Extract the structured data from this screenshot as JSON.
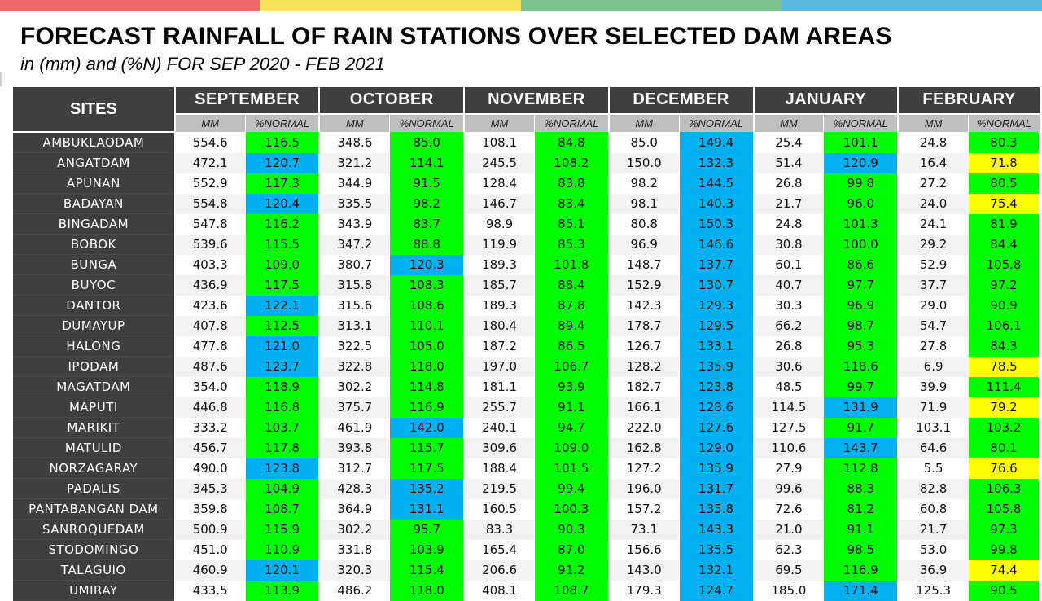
{
  "colors": {
    "bar": [
      "#f06a6a",
      "#f6e15a",
      "#7dc48f",
      "#58b6e0"
    ],
    "header_bg": "#3f3f3f",
    "green": "#00ff00",
    "blue": "#00b0f0",
    "yellow": "#ffff00"
  },
  "title": "FORECAST RAINFALL OF RAIN STATIONS OVER SELECTED DAM AREAS",
  "subtitle": "in (mm) and (%N) FOR SEP 2020 - FEB 2021",
  "sites_label": "SITES",
  "mm_label": "MM",
  "pct_label": "%NORMAL",
  "months": [
    "SEPTEMBER",
    "OCTOBER",
    "NOVEMBER",
    "DECEMBER",
    "JANUARY",
    "FEBRUARY"
  ],
  "rows": [
    {
      "site": "AMBUKLAODAM",
      "v": [
        [
          "554.6",
          "116.5",
          "g"
        ],
        [
          "348.6",
          "85.0",
          "g"
        ],
        [
          "108.1",
          "84.8",
          "g"
        ],
        [
          "85.0",
          "149.4",
          "b"
        ],
        [
          "25.4",
          "101.1",
          "g"
        ],
        [
          "24.8",
          "80.3",
          "g"
        ]
      ]
    },
    {
      "site": "ANGATDAM",
      "v": [
        [
          "472.1",
          "120.7",
          "b"
        ],
        [
          "321.2",
          "114.1",
          "g"
        ],
        [
          "245.5",
          "108.2",
          "g"
        ],
        [
          "150.0",
          "132.3",
          "b"
        ],
        [
          "51.4",
          "120.9",
          "b"
        ],
        [
          "16.4",
          "71.8",
          "y"
        ]
      ]
    },
    {
      "site": "APUNAN",
      "v": [
        [
          "552.9",
          "117.3",
          "g"
        ],
        [
          "344.9",
          "91.5",
          "g"
        ],
        [
          "128.4",
          "83.8",
          "g"
        ],
        [
          "98.2",
          "144.5",
          "b"
        ],
        [
          "26.8",
          "99.8",
          "g"
        ],
        [
          "27.2",
          "80.5",
          "g"
        ]
      ]
    },
    {
      "site": "BADAYAN",
      "v": [
        [
          "554.8",
          "120.4",
          "b"
        ],
        [
          "335.5",
          "98.2",
          "g"
        ],
        [
          "146.7",
          "83.4",
          "g"
        ],
        [
          "98.1",
          "140.3",
          "b"
        ],
        [
          "21.7",
          "96.0",
          "g"
        ],
        [
          "24.0",
          "75.4",
          "y"
        ]
      ]
    },
    {
      "site": "BINGADAM",
      "v": [
        [
          "547.8",
          "116.2",
          "g"
        ],
        [
          "343.9",
          "83.7",
          "g"
        ],
        [
          "98.9",
          "85.1",
          "g"
        ],
        [
          "80.8",
          "150.3",
          "b"
        ],
        [
          "24.8",
          "101.3",
          "g"
        ],
        [
          "24.1",
          "81.9",
          "g"
        ]
      ]
    },
    {
      "site": "BOBOK",
      "v": [
        [
          "539.6",
          "115.5",
          "g"
        ],
        [
          "347.2",
          "88.8",
          "g"
        ],
        [
          "119.9",
          "85.3",
          "g"
        ],
        [
          "96.9",
          "146.6",
          "b"
        ],
        [
          "30.8",
          "100.0",
          "g"
        ],
        [
          "29.2",
          "84.4",
          "g"
        ]
      ]
    },
    {
      "site": "BUNGA",
      "v": [
        [
          "403.3",
          "109.0",
          "g"
        ],
        [
          "380.7",
          "120.3",
          "b"
        ],
        [
          "189.3",
          "101.8",
          "g"
        ],
        [
          "148.7",
          "137.7",
          "b"
        ],
        [
          "60.1",
          "86.6",
          "g"
        ],
        [
          "52.9",
          "105.8",
          "g"
        ]
      ]
    },
    {
      "site": "BUYOC",
      "v": [
        [
          "436.9",
          "117.5",
          "g"
        ],
        [
          "315.8",
          "108.3",
          "g"
        ],
        [
          "185.7",
          "88.4",
          "g"
        ],
        [
          "152.9",
          "130.7",
          "b"
        ],
        [
          "40.7",
          "97.7",
          "g"
        ],
        [
          "37.7",
          "97.2",
          "g"
        ]
      ]
    },
    {
      "site": "DANTOR",
      "v": [
        [
          "423.6",
          "122.1",
          "b"
        ],
        [
          "315.6",
          "108.6",
          "g"
        ],
        [
          "189.3",
          "87.8",
          "g"
        ],
        [
          "142.3",
          "129.3",
          "b"
        ],
        [
          "30.3",
          "96.9",
          "g"
        ],
        [
          "29.0",
          "90.9",
          "g"
        ]
      ]
    },
    {
      "site": "DUMAYUP",
      "v": [
        [
          "407.8",
          "112.5",
          "g"
        ],
        [
          "313.1",
          "110.1",
          "g"
        ],
        [
          "180.4",
          "89.4",
          "g"
        ],
        [
          "178.7",
          "129.5",
          "b"
        ],
        [
          "66.2",
          "98.7",
          "g"
        ],
        [
          "54.7",
          "106.1",
          "g"
        ]
      ]
    },
    {
      "site": "HALONG",
      "v": [
        [
          "477.8",
          "121.0",
          "b"
        ],
        [
          "322.5",
          "105.0",
          "g"
        ],
        [
          "187.2",
          "86.5",
          "g"
        ],
        [
          "126.7",
          "133.1",
          "b"
        ],
        [
          "26.8",
          "95.3",
          "g"
        ],
        [
          "27.8",
          "84.3",
          "g"
        ]
      ]
    },
    {
      "site": "IPODAM",
      "v": [
        [
          "487.6",
          "123.7",
          "b"
        ],
        [
          "322.8",
          "118.0",
          "g"
        ],
        [
          "197.0",
          "106.7",
          "g"
        ],
        [
          "128.2",
          "135.9",
          "b"
        ],
        [
          "30.6",
          "118.6",
          "g"
        ],
        [
          "6.9",
          "78.5",
          "y"
        ]
      ]
    },
    {
      "site": "MAGATDAM",
      "v": [
        [
          "354.0",
          "118.9",
          "g"
        ],
        [
          "302.2",
          "114.8",
          "g"
        ],
        [
          "181.1",
          "93.9",
          "g"
        ],
        [
          "182.7",
          "123.8",
          "b"
        ],
        [
          "48.5",
          "99.7",
          "g"
        ],
        [
          "39.9",
          "111.4",
          "g"
        ]
      ]
    },
    {
      "site": "MAPUTI",
      "v": [
        [
          "446.8",
          "116.8",
          "g"
        ],
        [
          "375.7",
          "116.9",
          "g"
        ],
        [
          "255.7",
          "91.1",
          "g"
        ],
        [
          "166.1",
          "128.6",
          "b"
        ],
        [
          "114.5",
          "131.9",
          "b"
        ],
        [
          "71.9",
          "79.2",
          "y"
        ]
      ]
    },
    {
      "site": "MARIKIT",
      "v": [
        [
          "333.2",
          "103.7",
          "g"
        ],
        [
          "461.9",
          "142.0",
          "b"
        ],
        [
          "240.1",
          "94.7",
          "g"
        ],
        [
          "222.0",
          "127.6",
          "b"
        ],
        [
          "127.5",
          "91.7",
          "g"
        ],
        [
          "103.1",
          "103.2",
          "g"
        ]
      ]
    },
    {
      "site": "MATULID",
      "v": [
        [
          "456.7",
          "117.8",
          "g"
        ],
        [
          "393.8",
          "115.7",
          "g"
        ],
        [
          "309.6",
          "109.0",
          "g"
        ],
        [
          "162.8",
          "129.0",
          "b"
        ],
        [
          "110.6",
          "143.7",
          "b"
        ],
        [
          "64.6",
          "80.1",
          "g"
        ]
      ]
    },
    {
      "site": "NORZAGARAY",
      "v": [
        [
          "490.0",
          "123.8",
          "b"
        ],
        [
          "312.7",
          "117.5",
          "g"
        ],
        [
          "188.4",
          "101.5",
          "g"
        ],
        [
          "127.2",
          "135.9",
          "b"
        ],
        [
          "27.9",
          "112.8",
          "g"
        ],
        [
          "5.5",
          "76.6",
          "y"
        ]
      ]
    },
    {
      "site": "PADALIS",
      "v": [
        [
          "345.3",
          "104.9",
          "g"
        ],
        [
          "428.3",
          "135.2",
          "b"
        ],
        [
          "219.5",
          "99.4",
          "g"
        ],
        [
          "196.0",
          "131.7",
          "b"
        ],
        [
          "99.6",
          "88.3",
          "g"
        ],
        [
          "82.8",
          "106.3",
          "g"
        ]
      ]
    },
    {
      "site": "PANTABANGAN DAM",
      "v": [
        [
          "359.8",
          "108.7",
          "g"
        ],
        [
          "364.9",
          "131.1",
          "b"
        ],
        [
          "160.5",
          "100.3",
          "g"
        ],
        [
          "157.2",
          "135.8",
          "b"
        ],
        [
          "72.6",
          "81.2",
          "g"
        ],
        [
          "60.8",
          "105.8",
          "g"
        ]
      ]
    },
    {
      "site": "SANROQUEDAM",
      "v": [
        [
          "500.9",
          "115.9",
          "g"
        ],
        [
          "302.2",
          "95.7",
          "g"
        ],
        [
          "83.3",
          "90.3",
          "g"
        ],
        [
          "73.1",
          "143.3",
          "b"
        ],
        [
          "21.0",
          "91.1",
          "g"
        ],
        [
          "21.7",
          "97.3",
          "g"
        ]
      ]
    },
    {
      "site": "STODOMINGO",
      "v": [
        [
          "451.0",
          "110.9",
          "g"
        ],
        [
          "331.8",
          "103.9",
          "g"
        ],
        [
          "165.4",
          "87.0",
          "g"
        ],
        [
          "156.6",
          "135.5",
          "b"
        ],
        [
          "62.3",
          "98.5",
          "g"
        ],
        [
          "53.0",
          "99.8",
          "g"
        ]
      ]
    },
    {
      "site": "TALAGUIO",
      "v": [
        [
          "460.9",
          "120.1",
          "b"
        ],
        [
          "320.3",
          "115.4",
          "g"
        ],
        [
          "206.6",
          "91.2",
          "g"
        ],
        [
          "143.0",
          "132.1",
          "b"
        ],
        [
          "69.5",
          "116.9",
          "g"
        ],
        [
          "36.9",
          "74.4",
          "y"
        ]
      ]
    },
    {
      "site": "UMIRAY",
      "v": [
        [
          "433.5",
          "113.9",
          "g"
        ],
        [
          "486.2",
          "118.0",
          "g"
        ],
        [
          "408.1",
          "108.7",
          "g"
        ],
        [
          "179.3",
          "124.7",
          "b"
        ],
        [
          "185.0",
          "171.4",
          "b"
        ],
        [
          "125.3",
          "90.5",
          "g"
        ]
      ]
    }
  ]
}
